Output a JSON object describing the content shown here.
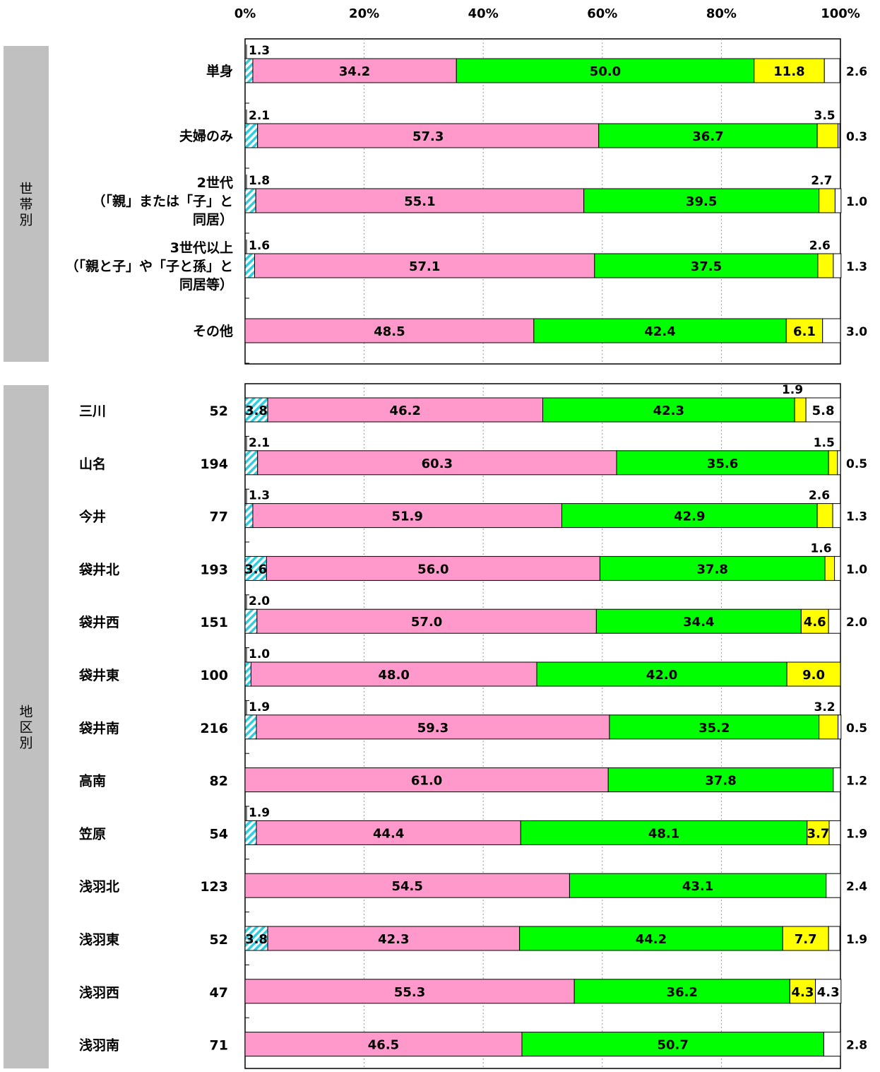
{
  "chart_data": {
    "type": "bar",
    "orientation": "horizontal",
    "stacked": true,
    "xlim": [
      0,
      100
    ],
    "x_tick_labels": [
      "0%",
      "20%",
      "40%",
      "60%",
      "80%",
      "100%"
    ],
    "grid": true,
    "series_colors": [
      "#33ccdd",
      "#ff99cc",
      "#00ff00",
      "#ffff00",
      "#ffffff"
    ],
    "groups": [
      {
        "label": "世帯別",
        "rows": [
          {
            "label": "単身",
            "values": [
              1.3,
              34.2,
              50.0,
              11.8,
              2.6
            ]
          },
          {
            "label": "夫婦のみ",
            "values": [
              2.1,
              57.3,
              36.7,
              3.5,
              0.3
            ]
          },
          {
            "label": "2世代\n（「親」または「子」と\n同居）",
            "values": [
              1.8,
              55.1,
              39.5,
              2.7,
              1.0
            ]
          },
          {
            "label": "3世代以上\n（「親と子」や「子と孫」と\n同居等）",
            "values": [
              1.6,
              57.1,
              37.5,
              2.6,
              1.3
            ]
          },
          {
            "label": "その他",
            "values": [
              0,
              48.5,
              42.4,
              6.1,
              3.0
            ]
          }
        ]
      },
      {
        "label": "地区別",
        "rows": [
          {
            "label": "三川",
            "n": "52",
            "values": [
              3.8,
              46.2,
              42.3,
              1.9,
              5.8
            ]
          },
          {
            "label": "山名",
            "n": "194",
            "values": [
              2.1,
              60.3,
              35.6,
              1.5,
              0.5
            ]
          },
          {
            "label": "今井",
            "n": "77",
            "values": [
              1.3,
              51.9,
              42.9,
              2.6,
              1.3
            ]
          },
          {
            "label": "袋井北",
            "n": "193",
            "values": [
              3.6,
              56.0,
              37.8,
              1.6,
              1.0
            ]
          },
          {
            "label": "袋井西",
            "n": "151",
            "values": [
              2.0,
              57.0,
              34.4,
              4.6,
              2.0
            ]
          },
          {
            "label": "袋井東",
            "n": "100",
            "values": [
              1.0,
              48.0,
              42.0,
              9.0,
              0
            ]
          },
          {
            "label": "袋井南",
            "n": "216",
            "values": [
              1.9,
              59.3,
              35.2,
              3.2,
              0.5
            ]
          },
          {
            "label": "高南",
            "n": "82",
            "values": [
              0,
              61.0,
              37.8,
              0,
              1.2
            ]
          },
          {
            "label": "笠原",
            "n": "54",
            "values": [
              1.9,
              44.4,
              48.1,
              3.7,
              1.9
            ]
          },
          {
            "label": "浅羽北",
            "n": "123",
            "values": [
              0,
              54.5,
              43.1,
              0,
              2.4
            ]
          },
          {
            "label": "浅羽東",
            "n": "52",
            "values": [
              3.8,
              42.3,
              44.2,
              7.7,
              1.9
            ]
          },
          {
            "label": "浅羽西",
            "n": "47",
            "values": [
              0,
              55.3,
              36.2,
              4.3,
              4.3
            ]
          },
          {
            "label": "浅羽南",
            "n": "71",
            "values": [
              0,
              46.5,
              50.7,
              0,
              2.8
            ]
          }
        ]
      }
    ]
  }
}
